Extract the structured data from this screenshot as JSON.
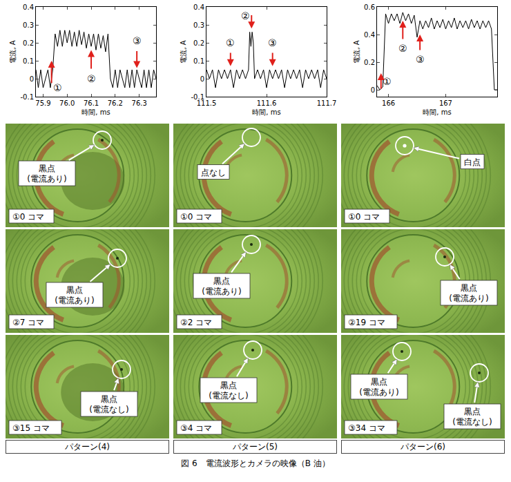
{
  "chart_data": [
    {
      "type": "line",
      "color": "#000000",
      "grid": false,
      "x_label": "時間, ms",
      "y_label": "電流, A",
      "xlim": [
        75.87,
        76.37
      ],
      "xticks": [
        75.9,
        {
          "value": 76,
          "label": "76.0"
        },
        76.1,
        76.2,
        76.3
      ],
      "ylim": [
        -0.1,
        0.4
      ],
      "yticks": [
        -0.1,
        0,
        0.1,
        0.2,
        0.3,
        0.4
      ],
      "x": [
        75.87,
        75.88,
        75.89,
        75.9,
        75.91,
        75.92,
        75.93,
        75.94,
        75.95,
        75.96,
        75.97,
        75.98,
        75.99,
        76,
        76.01,
        76.02,
        76.03,
        76.04,
        76.05,
        76.06,
        76.07,
        76.08,
        76.09,
        76.1,
        76.11,
        76.12,
        76.13,
        76.14,
        76.15,
        76.16,
        76.17,
        76.18,
        76.19,
        76.2,
        76.21,
        76.22,
        76.23,
        76.24,
        76.25,
        76.26,
        76.27,
        76.28,
        76.29,
        76.3,
        76.31,
        76.32,
        76.33,
        76.34,
        76.35,
        76.36,
        76.37
      ],
      "values": [
        0.05,
        -0.05,
        0.05,
        -0.05,
        0.0,
        0.05,
        -0.05,
        0.05,
        0.25,
        0.18,
        0.27,
        0.18,
        0.27,
        0.2,
        0.27,
        0.18,
        0.26,
        0.18,
        0.27,
        0.19,
        0.26,
        0.17,
        0.25,
        0.18,
        0.25,
        0.16,
        0.25,
        0.17,
        0.24,
        0.15,
        0.25,
        0.0,
        -0.05,
        0.05,
        -0.05,
        0.05,
        0.0,
        -0.05,
        0.05,
        -0.05,
        0.05,
        -0.05,
        0.05,
        0.0,
        -0.05,
        0.05,
        -0.05,
        0.05,
        -0.05,
        0.05,
        0.0
      ],
      "annotations": [
        {
          "text": "①",
          "x": 75.96,
          "y": -0.05,
          "arrow": {
            "from": [
              75.935,
              -0.03
            ],
            "to": [
              75.935,
              0.1
            ]
          }
        },
        {
          "text": "②",
          "x": 76.1,
          "y": 0.0,
          "arrow": {
            "from": [
              76.1,
              0.05
            ],
            "to": [
              76.1,
              0.16
            ]
          }
        },
        {
          "text": "③",
          "x": 76.29,
          "y": 0.21,
          "arrow": {
            "from": [
              76.29,
              0.16
            ],
            "to": [
              76.29,
              0.06
            ]
          }
        }
      ]
    },
    {
      "type": "line",
      "color": "#000000",
      "grid": false,
      "x_label": "時間, ms",
      "y_label": "電流, A",
      "xlim": [
        111.5,
        111.7
      ],
      "xticks": [
        111.5,
        111.6,
        111.7
      ],
      "ylim": [
        -0.1,
        0.4
      ],
      "yticks": [
        -0.1,
        0,
        0.1,
        0.2,
        0.3,
        0.4
      ],
      "x": [
        111.5,
        111.505,
        111.51,
        111.515,
        111.52,
        111.525,
        111.53,
        111.535,
        111.54,
        111.545,
        111.55,
        111.555,
        111.56,
        111.565,
        111.57,
        111.572,
        111.574,
        111.576,
        111.578,
        111.58,
        111.585,
        111.59,
        111.595,
        111.6,
        111.605,
        111.61,
        111.615,
        111.62,
        111.625,
        111.63,
        111.635,
        111.64,
        111.645,
        111.65,
        111.655,
        111.66,
        111.665,
        111.67,
        111.675,
        111.68,
        111.685,
        111.69,
        111.695,
        111.7
      ],
      "values": [
        0.05,
        0.0,
        0.05,
        -0.05,
        0.05,
        0.0,
        0.05,
        0.0,
        0.05,
        -0.05,
        0.05,
        0.0,
        0.05,
        0.0,
        0.05,
        0.26,
        0.18,
        0.26,
        0.2,
        0.0,
        0.05,
        0.0,
        0.05,
        -0.05,
        0.05,
        0.0,
        0.05,
        0.0,
        0.05,
        -0.05,
        0.05,
        0.0,
        0.05,
        0.0,
        0.05,
        -0.05,
        0.05,
        0.0,
        0.05,
        0.0,
        0.05,
        -0.05,
        0.05,
        0.0
      ],
      "annotations": [
        {
          "text": "①",
          "x": 111.54,
          "y": 0.2,
          "arrow": {
            "from": [
              111.54,
              0.15
            ],
            "to": [
              111.54,
              0.07
            ]
          }
        },
        {
          "text": "②",
          "x": 111.565,
          "y": 0.35,
          "arrow": {
            "from": [
              111.575,
              0.36
            ],
            "to": [
              111.575,
              0.28
            ]
          }
        },
        {
          "text": "③",
          "x": 111.61,
          "y": 0.2,
          "arrow": {
            "from": [
              111.61,
              0.15
            ],
            "to": [
              111.61,
              0.07
            ]
          }
        }
      ]
    },
    {
      "type": "line",
      "color": "#000000",
      "grid": false,
      "x_label": "時間, ms",
      "y_label": "電流, A",
      "xlim": [
        165.8,
        167.9
      ],
      "xticks": [
        166,
        167
      ],
      "ylim": [
        -0.05,
        0.6
      ],
      "yticks": [
        0,
        0.2,
        0.4,
        0.6
      ],
      "x": [
        165.8,
        165.85,
        165.9,
        165.95,
        166,
        166.05,
        166.1,
        166.15,
        166.2,
        166.25,
        166.3,
        166.35,
        166.4,
        166.45,
        166.5,
        166.55,
        166.6,
        166.65,
        166.7,
        166.75,
        166.8,
        166.85,
        166.9,
        166.95,
        167,
        167.05,
        167.1,
        167.15,
        167.2,
        167.25,
        167.3,
        167.35,
        167.4,
        167.45,
        167.5,
        167.55,
        167.6,
        167.65,
        167.7,
        167.75,
        167.8,
        167.85,
        167.9
      ],
      "values": [
        0.03,
        0.0,
        0.02,
        0.55,
        0.48,
        0.55,
        0.5,
        0.55,
        0.48,
        0.56,
        0.5,
        0.55,
        0.48,
        0.54,
        0.38,
        0.5,
        0.44,
        0.5,
        0.45,
        0.52,
        0.44,
        0.5,
        0.45,
        0.51,
        0.44,
        0.5,
        0.45,
        0.52,
        0.44,
        0.5,
        0.45,
        0.5,
        0.44,
        0.51,
        0.45,
        0.5,
        0.44,
        0.5,
        0.45,
        0.5,
        0.44,
        0.0,
        0.0
      ],
      "annotations": [
        {
          "text": "①",
          "x": 165.98,
          "y": 0.06,
          "arrow": {
            "from": [
              165.87,
              0.0
            ],
            "to": [
              165.87,
              0.12
            ]
          }
        },
        {
          "text": "②",
          "x": 166.25,
          "y": 0.3,
          "arrow": {
            "from": [
              166.25,
              0.36
            ],
            "to": [
              166.25,
              0.5
            ]
          }
        },
        {
          "text": "③",
          "x": 166.55,
          "y": 0.22,
          "arrow": {
            "from": [
              166.55,
              0.28
            ],
            "to": [
              166.55,
              0.4
            ]
          }
        }
      ]
    }
  ],
  "panels": [
    {
      "pattern": "パターン(4)",
      "frames": [
        {
          "frame": "①0 コマ",
          "labels": [
            [
              "黒点",
              "(電流あり)"
            ]
          ]
        },
        {
          "frame": "②7 コマ",
          "labels": [
            [
              "黒点",
              "(電流あり)"
            ]
          ]
        },
        {
          "frame": "③15 コマ",
          "labels": [
            [
              "黒点",
              "(電流なし)"
            ]
          ]
        }
      ]
    },
    {
      "pattern": "パターン(5)",
      "frames": [
        {
          "frame": "①0 コマ",
          "labels": [
            [
              "点なし"
            ]
          ]
        },
        {
          "frame": "②2 コマ",
          "labels": [
            [
              "黒点",
              "(電流あり)"
            ]
          ]
        },
        {
          "frame": "③4 コマ",
          "labels": [
            [
              "黒点",
              "(電流なし)"
            ]
          ]
        }
      ]
    },
    {
      "pattern": "パターン(6)",
      "frames": [
        {
          "frame": "①0 コマ",
          "labels": [
            [
              "白点"
            ]
          ]
        },
        {
          "frame": "②19 コマ",
          "labels": [
            [
              "黒点",
              "(電流あり)"
            ]
          ]
        },
        {
          "frame": "③34 コマ",
          "labels": [
            [
              "黒点",
              "(電流あり)"
            ],
            [
              "黒点",
              "(電流なし)"
            ]
          ]
        }
      ]
    }
  ],
  "caption": "図 6　電流波形とカメラの映像（B 油）"
}
